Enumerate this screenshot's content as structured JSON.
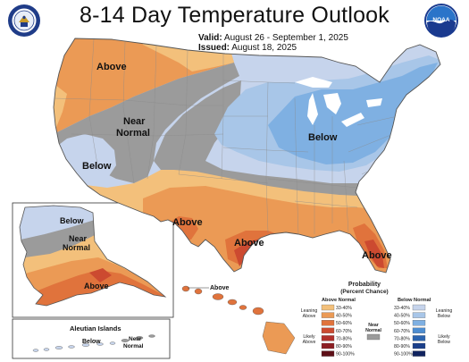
{
  "header": {
    "title": "8-14 Day Temperature Outlook",
    "valid_label": "Valid:",
    "valid_value": "August 26 - September 1, 2025",
    "issued_label": "Issued:",
    "issued_value": "August 18, 2025"
  },
  "logos": {
    "left": "doc-seal-icon",
    "right": "noaa-logo-icon",
    "right_text": "NOAA"
  },
  "map_labels": {
    "conus_above_west": "Above",
    "conus_near_normal": "Near Normal",
    "conus_near_line1": "Near",
    "conus_near_line2": "Normal",
    "conus_below_west": "Below",
    "conus_below_east": "Below",
    "conus_above_texas": "Above",
    "conus_above_gulf": "Above",
    "conus_above_florida": "Above",
    "alaska_below": "Below",
    "alaska_near_line1": "Near",
    "alaska_near_line2": "Normal",
    "alaska_above": "Above",
    "hawaii_above": "Above",
    "aleutian_title": "Aleutian Islands",
    "aleutian_below": "Below",
    "aleutian_near_line1": "Near",
    "aleutian_near_line2": "Normal"
  },
  "legend": {
    "title_line1": "Probability",
    "title_line2": "(Percent Chance)",
    "above_head": "Above Normal",
    "below_head": "Below Normal",
    "near_head_line1": "Near",
    "near_head_line2": "Normal",
    "leaning_above_line1": "Leaning",
    "leaning_above_line2": "Above",
    "likely_above_line1": "Likely",
    "likely_above_line2": "Above",
    "leaning_below_line1": "Leaning",
    "leaning_below_line2": "Below",
    "likely_below_line1": "Likely",
    "likely_below_line2": "Below",
    "above_bins": [
      {
        "label": "33-40%",
        "color": "#f3c07b"
      },
      {
        "label": "40-50%",
        "color": "#eb9a55"
      },
      {
        "label": "50-60%",
        "color": "#e0733c"
      },
      {
        "label": "60-70%",
        "color": "#cc4a30"
      },
      {
        "label": "70-80%",
        "color": "#b12f2b"
      },
      {
        "label": "80-90%",
        "color": "#8c1e23"
      },
      {
        "label": "90-100%",
        "color": "#5e0f17"
      }
    ],
    "below_bins": [
      {
        "label": "33-40%",
        "color": "#c6d4ec"
      },
      {
        "label": "40-50%",
        "color": "#a8c6e8"
      },
      {
        "label": "50-60%",
        "color": "#7fb0e2"
      },
      {
        "label": "60-70%",
        "color": "#4d8dd1"
      },
      {
        "label": "70-80%",
        "color": "#2b64b0"
      },
      {
        "label": "80-90%",
        "color": "#1b3f8a"
      },
      {
        "label": "90-100%",
        "color": "#10235f"
      }
    ],
    "near_color": "#9b9b9b"
  }
}
